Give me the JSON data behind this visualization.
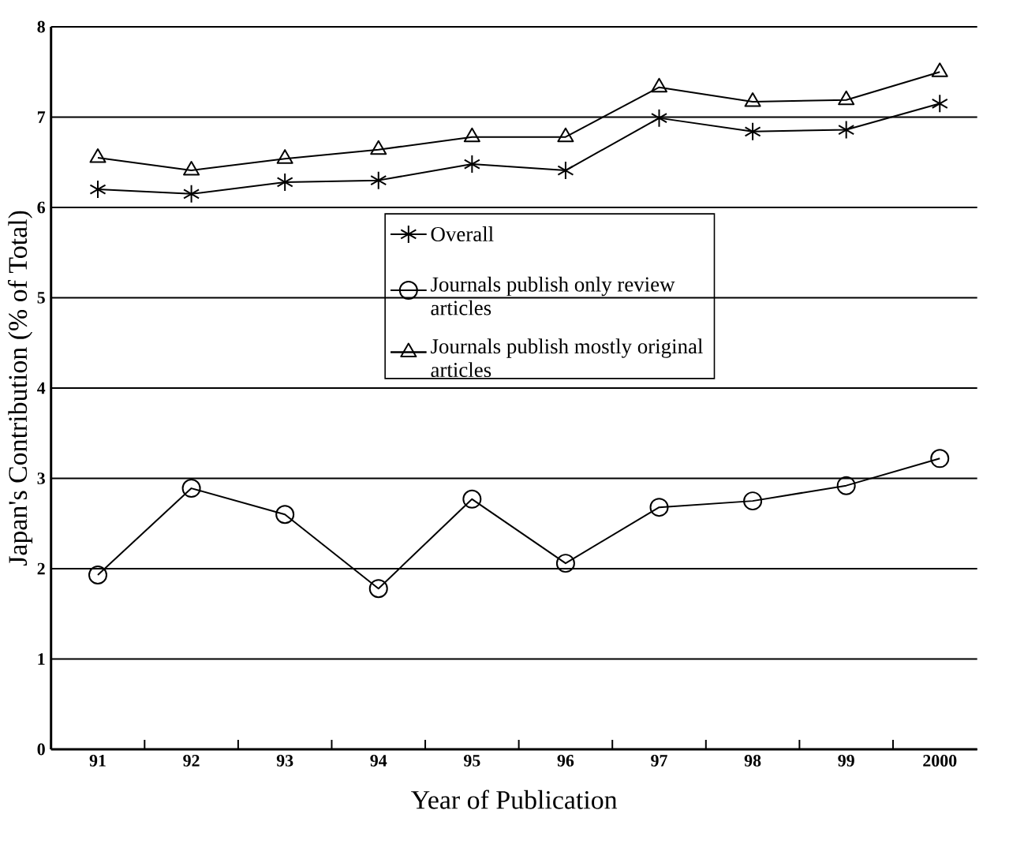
{
  "chart_data": {
    "type": "line",
    "xlabel": "Year of Publication",
    "ylabel": "Japan's Contribution (% of Total)",
    "categories": [
      "91",
      "92",
      "93",
      "94",
      "95",
      "96",
      "97",
      "98",
      "99",
      "2000"
    ],
    "series": [
      {
        "name": "Overall",
        "color": "#000000",
        "marker": "cross",
        "values": [
          6.2,
          6.15,
          6.28,
          6.3,
          6.48,
          6.41,
          6.99,
          6.84,
          6.86,
          7.15
        ]
      },
      {
        "name": "Journals publish only review articles",
        "color": "#000000",
        "marker": "circle",
        "values": [
          1.93,
          2.89,
          2.6,
          1.78,
          2.77,
          2.06,
          2.68,
          2.75,
          2.92,
          3.22
        ]
      },
      {
        "name": "Journals publish mostly original articles",
        "color": "#000000",
        "marker": "triangle",
        "values": [
          6.55,
          6.41,
          6.54,
          6.64,
          6.78,
          6.78,
          7.33,
          7.17,
          7.19,
          7.5
        ]
      }
    ],
    "ylim": [
      0,
      8
    ],
    "yticks": [
      0,
      1,
      2,
      3,
      4,
      5,
      6,
      7,
      8
    ],
    "grid": "y",
    "legend": "center",
    "line_style": "solid"
  }
}
